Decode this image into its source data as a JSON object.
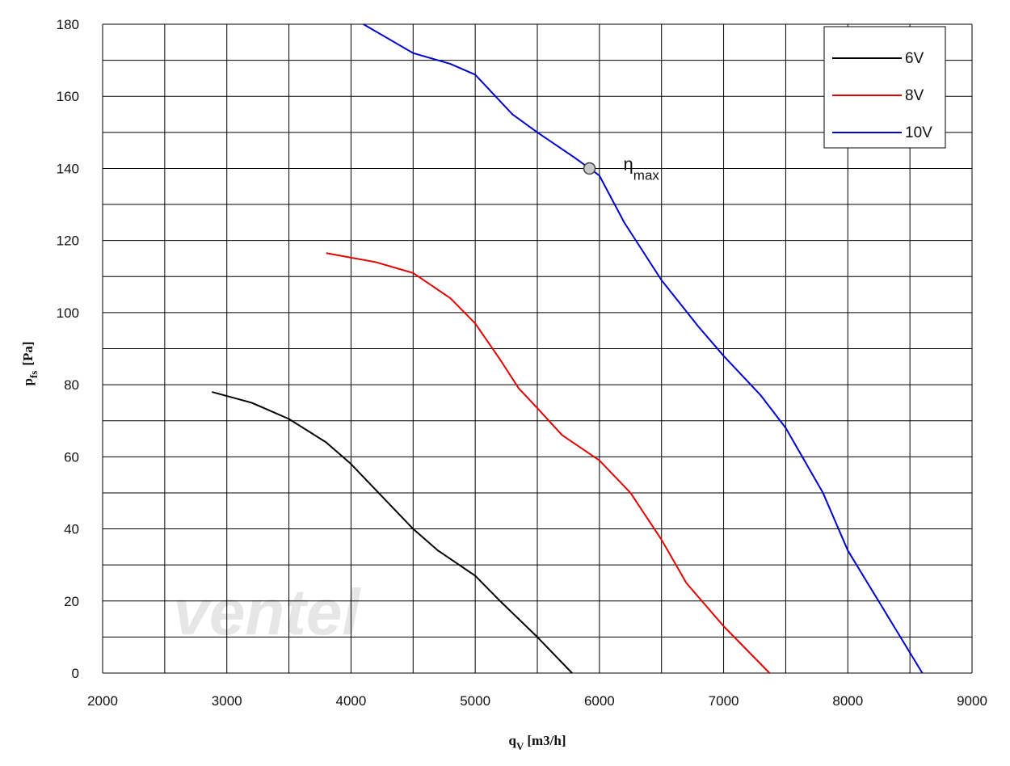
{
  "chart_data": {
    "type": "line",
    "x_label": {
      "main": "q",
      "sub": "V",
      "unit": "[m3/h]"
    },
    "y_label": {
      "main": "p",
      "sub": "fs",
      "unit": "[Pa]"
    },
    "xlim": [
      2000,
      9000
    ],
    "ylim": [
      0,
      180
    ],
    "xticks": [
      2000,
      3000,
      4000,
      5000,
      6000,
      7000,
      8000,
      9000
    ],
    "yticks": [
      0,
      20,
      40,
      60,
      80,
      100,
      120,
      140,
      160,
      180
    ],
    "x_minor_grid": [
      2500,
      3500,
      4500,
      5500,
      6500,
      7500,
      8500
    ],
    "y_minor_grid": [
      10,
      30,
      50,
      70,
      90,
      110,
      130,
      150,
      170
    ],
    "grid": true,
    "legend": "upper right",
    "series": [
      {
        "name": "6V",
        "color": "#000000",
        "x": [
          2880,
          3200,
          3500,
          3800,
          4000,
          4250,
          4500,
          4700,
          5000,
          5200,
          5500,
          5780
        ],
        "values": [
          78,
          75,
          70.5,
          64,
          58,
          49,
          40,
          34,
          27,
          20,
          10,
          0
        ]
      },
      {
        "name": "8V",
        "color": "#e00000",
        "x": [
          3800,
          4200,
          4500,
          4800,
          5000,
          5200,
          5350,
          5500,
          5700,
          6000,
          6250,
          6500,
          6700,
          7000,
          7370
        ],
        "values": [
          116.5,
          114,
          111,
          104,
          97,
          87,
          79,
          73.5,
          66,
          59,
          50,
          37,
          25,
          13,
          0
        ]
      },
      {
        "name": "10V",
        "color": "#0000cc",
        "x": [
          4100,
          4500,
          4800,
          5000,
          5300,
          5500,
          5800,
          6000,
          6200,
          6500,
          6800,
          7000,
          7300,
          7500,
          7800,
          8000,
          8300,
          8600
        ],
        "values": [
          180,
          172,
          169,
          166,
          155,
          150,
          143,
          138,
          125,
          109,
          96,
          88,
          77,
          68,
          50,
          34,
          17,
          0
        ]
      }
    ],
    "marker": {
      "x": 5920,
      "value": 140,
      "label": "η",
      "label_sub": "max",
      "color": "#c8c8c8"
    },
    "watermark": "ventel"
  }
}
